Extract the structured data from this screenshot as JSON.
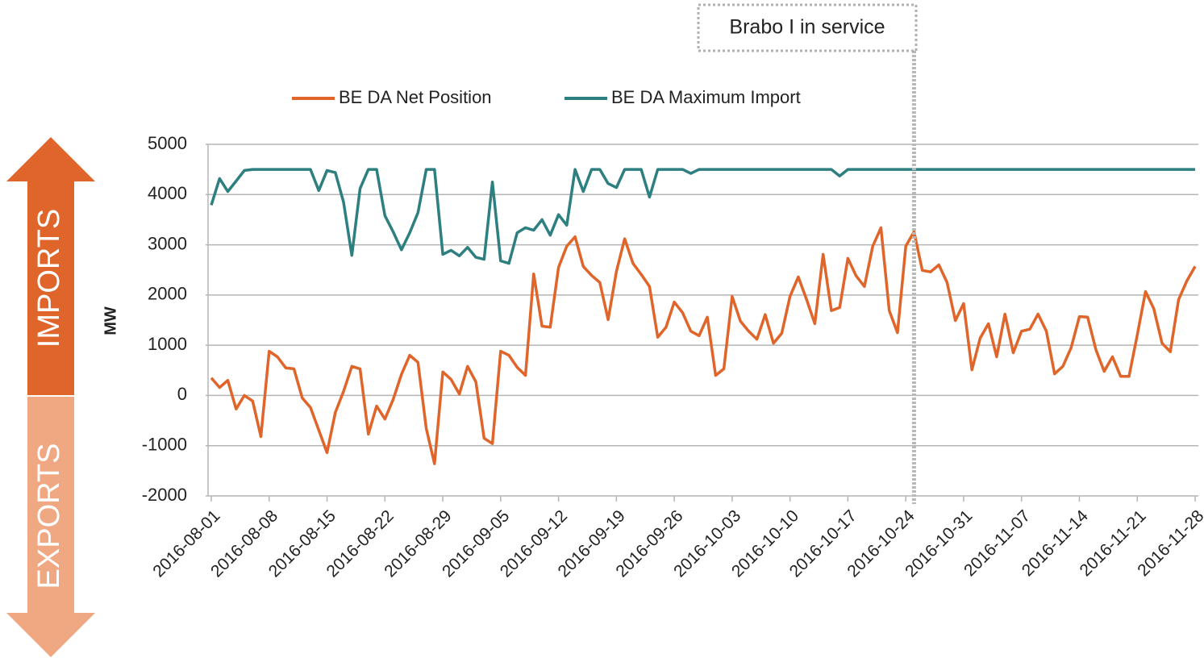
{
  "chart_data": {
    "type": "line",
    "y_label": "MW",
    "side_labels": {
      "top": "IMPORTS",
      "bottom": "EXPORTS"
    },
    "annotation": {
      "text": "Brabo I in service",
      "x": "2016-10-25"
    },
    "x": [
      "2016-08-01",
      "2016-08-02",
      "2016-08-03",
      "2016-08-04",
      "2016-08-05",
      "2016-08-06",
      "2016-08-07",
      "2016-08-08",
      "2016-08-09",
      "2016-08-10",
      "2016-08-11",
      "2016-08-12",
      "2016-08-13",
      "2016-08-14",
      "2016-08-15",
      "2016-08-16",
      "2016-08-17",
      "2016-08-18",
      "2016-08-19",
      "2016-08-20",
      "2016-08-21",
      "2016-08-22",
      "2016-08-23",
      "2016-08-24",
      "2016-08-25",
      "2016-08-26",
      "2016-08-27",
      "2016-08-28",
      "2016-08-29",
      "2016-08-30",
      "2016-08-31",
      "2016-09-01",
      "2016-09-02",
      "2016-09-03",
      "2016-09-04",
      "2016-09-05",
      "2016-09-06",
      "2016-09-07",
      "2016-09-08",
      "2016-09-09",
      "2016-09-10",
      "2016-09-11",
      "2016-09-12",
      "2016-09-13",
      "2016-09-14",
      "2016-09-15",
      "2016-09-16",
      "2016-09-17",
      "2016-09-18",
      "2016-09-19",
      "2016-09-20",
      "2016-09-21",
      "2016-09-22",
      "2016-09-23",
      "2016-09-24",
      "2016-09-25",
      "2016-09-26",
      "2016-09-27",
      "2016-09-28",
      "2016-09-29",
      "2016-09-30",
      "2016-10-01",
      "2016-10-02",
      "2016-10-03",
      "2016-10-04",
      "2016-10-05",
      "2016-10-06",
      "2016-10-07",
      "2016-10-08",
      "2016-10-09",
      "2016-10-10",
      "2016-10-11",
      "2016-10-12",
      "2016-10-13",
      "2016-10-14",
      "2016-10-15",
      "2016-10-16",
      "2016-10-17",
      "2016-10-18",
      "2016-10-19",
      "2016-10-20",
      "2016-10-21",
      "2016-10-22",
      "2016-10-23",
      "2016-10-24",
      "2016-10-25",
      "2016-10-26",
      "2016-10-27",
      "2016-10-28",
      "2016-10-29",
      "2016-10-30",
      "2016-10-31",
      "2016-11-01",
      "2016-11-02",
      "2016-11-03",
      "2016-11-04",
      "2016-11-05",
      "2016-11-06",
      "2016-11-07",
      "2016-11-08",
      "2016-11-09",
      "2016-11-10",
      "2016-11-11",
      "2016-11-12",
      "2016-11-13",
      "2016-11-14",
      "2016-11-15",
      "2016-11-16",
      "2016-11-17",
      "2016-11-18",
      "2016-11-19",
      "2016-11-20",
      "2016-11-21",
      "2016-11-22",
      "2016-11-23",
      "2016-11-24",
      "2016-11-25",
      "2016-11-26",
      "2016-11-27",
      "2016-11-28"
    ],
    "series": [
      {
        "name": "BE DA Net Position",
        "color": "#e0652a",
        "values": [
          350,
          160,
          300,
          -270,
          0,
          -110,
          -820,
          880,
          770,
          550,
          530,
          -50,
          -240,
          -690,
          -1140,
          -340,
          80,
          580,
          530,
          -770,
          -210,
          -470,
          -80,
          420,
          800,
          660,
          -660,
          -1360,
          470,
          320,
          30,
          580,
          270,
          -850,
          -960,
          880,
          800,
          560,
          400,
          2420,
          1380,
          1360,
          2550,
          2970,
          3160,
          2570,
          2390,
          2250,
          1510,
          2470,
          3120,
          2630,
          2410,
          2170,
          1160,
          1360,
          1860,
          1650,
          1280,
          1190,
          1560,
          400,
          530,
          1970,
          1480,
          1280,
          1120,
          1610,
          1040,
          1240,
          1970,
          2360,
          1910,
          1430,
          2810,
          1690,
          1750,
          2730,
          2380,
          2170,
          2970,
          3340,
          1690,
          1250,
          2970,
          3260,
          2490,
          2460,
          2600,
          2250,
          1490,
          1830,
          510,
          1140,
          1430,
          770,
          1620,
          850,
          1280,
          1320,
          1620,
          1280,
          430,
          580,
          950,
          1570,
          1560,
          910,
          480,
          770,
          380,
          380,
          1200,
          2070,
          1730,
          1040,
          870,
          1910,
          2280,
          2570
        ]
      },
      {
        "name": "BE DA Maximum Import",
        "color": "#2e7f80",
        "values": [
          3790,
          4320,
          4060,
          4270,
          4480,
          4500,
          4500,
          4500,
          4500,
          4500,
          4500,
          4500,
          4500,
          4080,
          4480,
          4440,
          3850,
          2790,
          4120,
          4500,
          4500,
          3580,
          3260,
          2900,
          3240,
          3640,
          4500,
          4500,
          2810,
          2890,
          2780,
          2950,
          2750,
          2710,
          4250,
          2680,
          2630,
          3240,
          3340,
          3290,
          3500,
          3190,
          3600,
          3390,
          4500,
          4060,
          4500,
          4500,
          4220,
          4140,
          4500,
          4500,
          4500,
          3950,
          4500,
          4500,
          4500,
          4500,
          4420,
          4500,
          4500,
          4500,
          4500,
          4500,
          4500,
          4500,
          4500,
          4500,
          4500,
          4500,
          4500,
          4500,
          4500,
          4500,
          4500,
          4500,
          4370,
          4500,
          4500,
          4500,
          4500,
          4500,
          4500,
          4500,
          4500,
          4500,
          4500,
          4500,
          4500,
          4500,
          4500,
          4500,
          4500,
          4500,
          4500,
          4500,
          4500,
          4500,
          4500,
          4500,
          4500,
          4500,
          4500,
          4500,
          4500,
          4500,
          4500,
          4500,
          4500,
          4500,
          4500,
          4500,
          4500,
          4500,
          4500,
          4500,
          4500,
          4500,
          4500,
          4500
        ]
      }
    ],
    "xlim": [
      "2016-08-01",
      "2016-11-28"
    ],
    "xticks": [
      "2016-08-01",
      "2016-08-08",
      "2016-08-15",
      "2016-08-22",
      "2016-08-29",
      "2016-09-05",
      "2016-09-12",
      "2016-09-19",
      "2016-09-26",
      "2016-10-03",
      "2016-10-10",
      "2016-10-17",
      "2016-10-24",
      "2016-10-31",
      "2016-11-07",
      "2016-11-14",
      "2016-11-21",
      "2016-11-28"
    ],
    "ylim": [
      -2000,
      5000
    ],
    "yticks": [
      5000,
      4000,
      3000,
      2000,
      1000,
      0,
      -1000,
      -2000
    ],
    "grid": true,
    "legend": "top"
  }
}
